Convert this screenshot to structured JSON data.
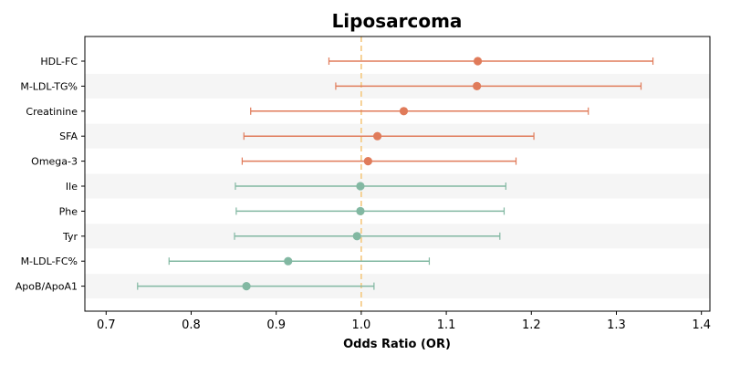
{
  "chart_data": {
    "type": "forest",
    "title": "Liposarcoma",
    "xlabel": "Odds Ratio (OR)",
    "ylabel": "",
    "xlim": [
      0.675,
      1.41
    ],
    "xticks": [
      "0.7",
      "0.8",
      "0.9",
      "1.0",
      "1.1",
      "1.2",
      "1.3",
      "1.4"
    ],
    "reference_line": 1.0,
    "grid": false,
    "row_striping": true,
    "colors": {
      "risk": "#e07b5a",
      "protective": "#82b8a2",
      "reference_line": "#f5c77e",
      "stripe": "#f5f5f5"
    },
    "rows": [
      {
        "label": "HDL-FC",
        "or": 1.137,
        "lower": 0.962,
        "upper": 1.343,
        "group": "risk"
      },
      {
        "label": "M-LDL-TG%",
        "or": 1.136,
        "lower": 0.97,
        "upper": 1.329,
        "group": "risk"
      },
      {
        "label": "Creatinine",
        "or": 1.05,
        "lower": 0.87,
        "upper": 1.267,
        "group": "risk"
      },
      {
        "label": "SFA",
        "or": 1.019,
        "lower": 0.862,
        "upper": 1.203,
        "group": "risk"
      },
      {
        "label": "Omega-3",
        "or": 1.008,
        "lower": 0.86,
        "upper": 1.182,
        "group": "risk"
      },
      {
        "label": "Ile",
        "or": 0.999,
        "lower": 0.852,
        "upper": 1.17,
        "group": "protective"
      },
      {
        "label": "Phe",
        "or": 0.999,
        "lower": 0.853,
        "upper": 1.168,
        "group": "protective"
      },
      {
        "label": "Tyr",
        "or": 0.995,
        "lower": 0.851,
        "upper": 1.163,
        "group": "protective"
      },
      {
        "label": "M-LDL-FC%",
        "or": 0.914,
        "lower": 0.774,
        "upper": 1.08,
        "group": "protective"
      },
      {
        "label": "ApoB/ApoA1",
        "or": 0.865,
        "lower": 0.737,
        "upper": 1.015,
        "group": "protective"
      }
    ]
  }
}
